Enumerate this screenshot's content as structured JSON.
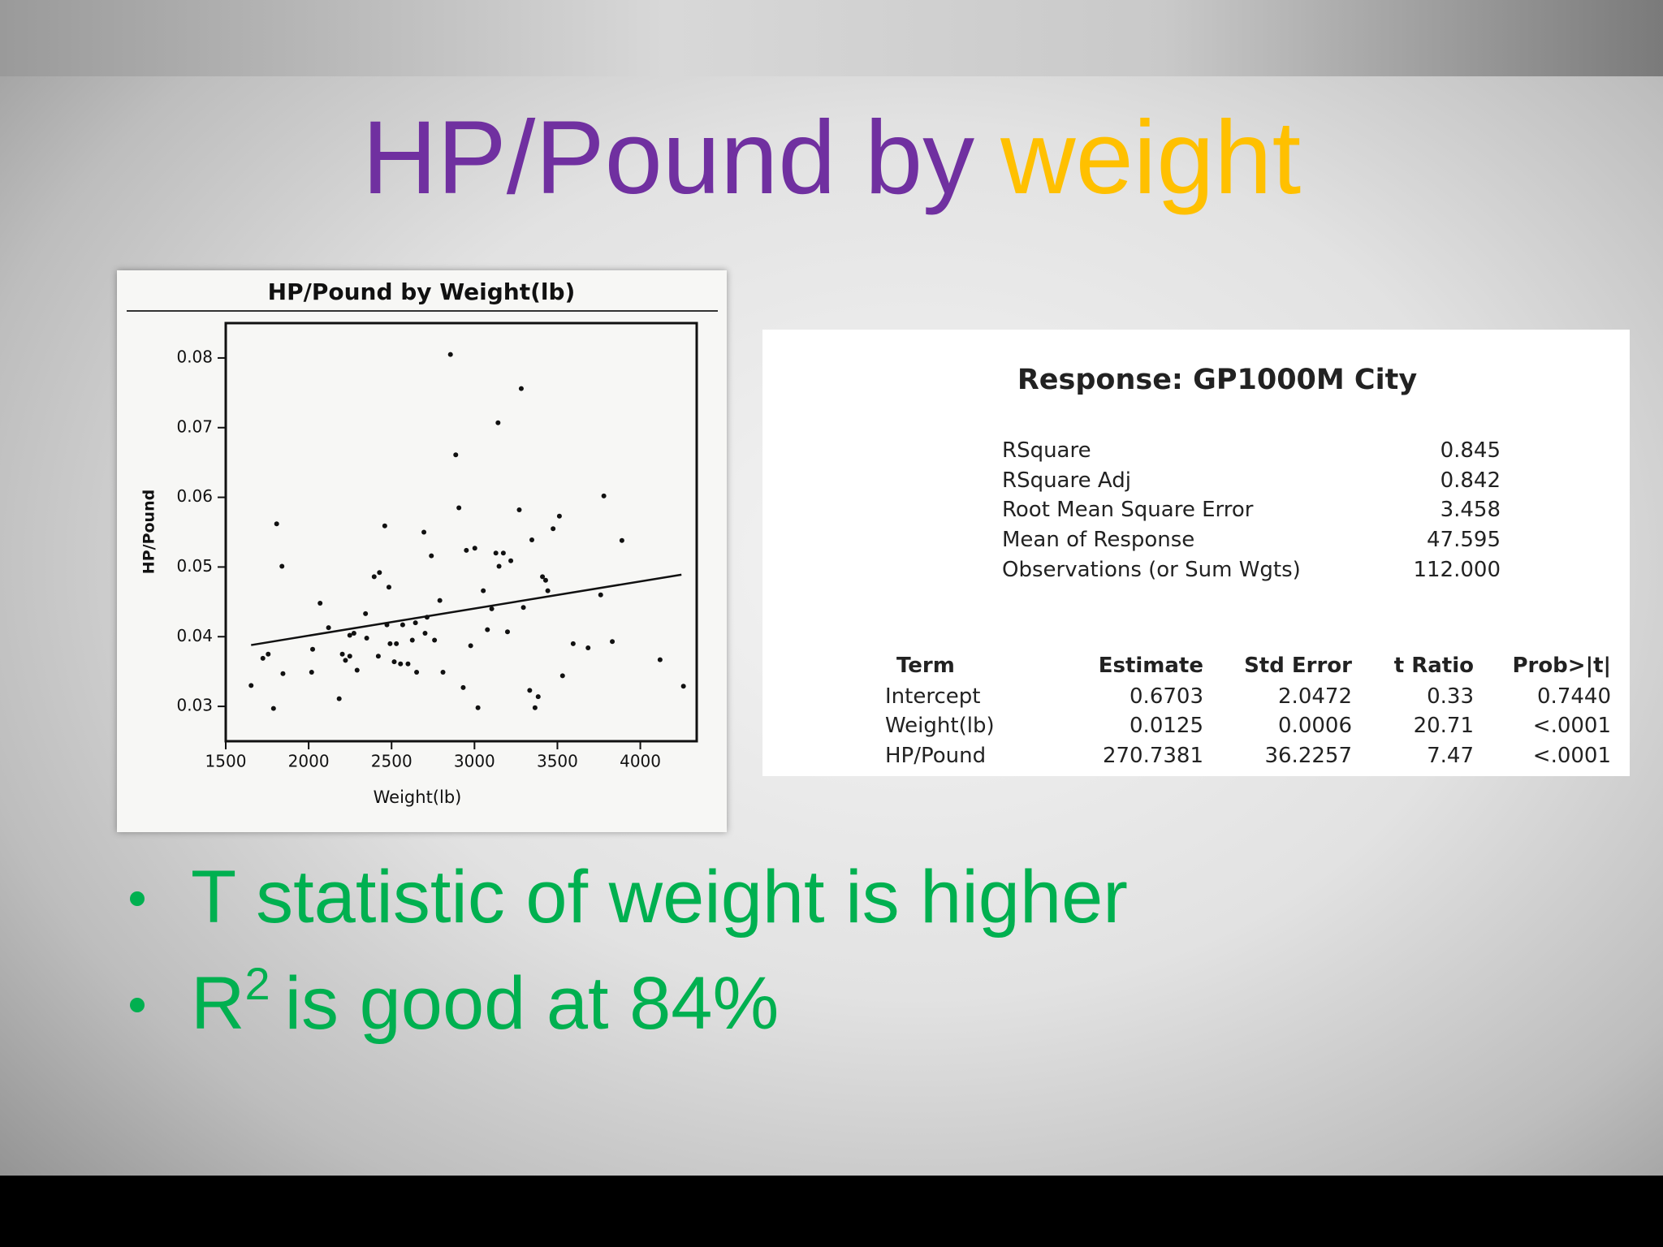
{
  "title": {
    "main": "HP/Pound by",
    "highlight": "weight"
  },
  "chart_data": {
    "type": "scatter",
    "title": "HP/Pound by Weight(lb)",
    "x_label": "Weight(lb)",
    "y_label": "HP/Pound",
    "xlim": [
      1500,
      4340
    ],
    "ylim": [
      0.025,
      0.085
    ],
    "xticks": [
      1500,
      2000,
      2500,
      3000,
      3500,
      4000
    ],
    "yticks": [
      0.03,
      0.04,
      0.05,
      0.06,
      0.07,
      0.08
    ],
    "color": "#111111",
    "x": [
      1653,
      1724,
      1756,
      1788,
      1807,
      1839,
      1845,
      2024,
      2018,
      2069,
      2184,
      2203,
      2222,
      2248,
      2273,
      2292,
      2343,
      2350,
      2395,
      2427,
      2420,
      2459,
      2472,
      2484,
      2491,
      2516,
      2529,
      2554,
      2567,
      2599,
      2625,
      2644,
      2651,
      2695,
      2702,
      2714,
      2740,
      2759,
      2791,
      2810,
      2855,
      2887,
      2906,
      2932,
      2977,
      3002,
      3021,
      3053,
      3078,
      3104,
      3129,
      3142,
      3148,
      3174,
      3199,
      3219,
      3270,
      3282,
      3295,
      3333,
      3365,
      3384,
      3410,
      3442,
      3474,
      3512,
      3531,
      3595,
      3685,
      3761,
      3780,
      3831,
      3889,
      4119,
      4260,
      2120,
      2248,
      2951,
      3346,
      3429
    ],
    "y": [
      0.033,
      0.0369,
      0.0375,
      0.0297,
      0.0562,
      0.0501,
      0.0347,
      0.0382,
      0.0349,
      0.0448,
      0.0311,
      0.0375,
      0.0366,
      0.0402,
      0.0405,
      0.0352,
      0.0433,
      0.0398,
      0.0486,
      0.0492,
      0.0372,
      0.0559,
      0.0417,
      0.0471,
      0.039,
      0.0364,
      0.039,
      0.0361,
      0.0417,
      0.0361,
      0.0395,
      0.042,
      0.0349,
      0.055,
      0.0405,
      0.0428,
      0.0516,
      0.0395,
      0.0452,
      0.0349,
      0.0805,
      0.0661,
      0.0585,
      0.0327,
      0.0387,
      0.0527,
      0.0298,
      0.0466,
      0.041,
      0.044,
      0.052,
      0.0707,
      0.0501,
      0.052,
      0.0407,
      0.0509,
      0.0582,
      0.0756,
      0.0442,
      0.0323,
      0.0298,
      0.0314,
      0.0486,
      0.0466,
      0.0555,
      0.0573,
      0.0344,
      0.039,
      0.0384,
      0.046,
      0.0602,
      0.0393,
      0.0538,
      0.0367,
      0.0329,
      0.0413,
      0.0372,
      0.0524,
      0.0539,
      0.0481
    ],
    "fit": {
      "x": [
        1653,
        4248
      ],
      "y": [
        0.0388,
        0.0489
      ]
    }
  },
  "table": {
    "title": "Response:  GP1000M City",
    "summary": [
      [
        "RSquare",
        "0.845"
      ],
      [
        "RSquare Adj",
        "0.842"
      ],
      [
        "Root Mean Square Error",
        "3.458"
      ],
      [
        "Mean of Response",
        "47.595"
      ],
      [
        "Observations (or Sum Wgts)",
        "112.000"
      ]
    ],
    "header": [
      "Term",
      "Estimate",
      "Std Error",
      "t Ratio",
      "Prob>|t|"
    ],
    "rows": [
      [
        "Intercept",
        "0.6703",
        "2.0472",
        "0.33",
        "0.7440"
      ],
      [
        "Weight(lb)",
        "0.0125",
        "0.0006",
        "20.71",
        "<.0001"
      ],
      [
        "HP/Pound",
        "270.7381",
        "36.2257",
        "7.47",
        "<.0001"
      ]
    ]
  },
  "bullets": [
    {
      "text": "T statistic of weight is higher"
    },
    {
      "text": "R",
      "sup": "2",
      "rest": "is good at 84%"
    }
  ]
}
